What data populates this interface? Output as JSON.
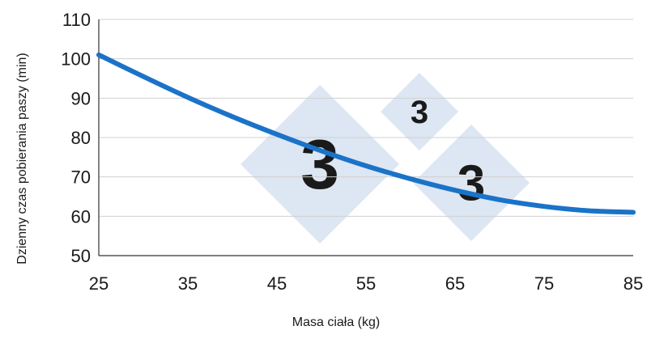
{
  "chart_data": {
    "type": "line",
    "title": "",
    "xlabel": "Masa ciała (kg)",
    "ylabel": "Dzienny czas pobierania paszy (min)",
    "xlim": [
      25,
      85
    ],
    "ylim": [
      50,
      110
    ],
    "x_ticks": [
      "25",
      "35",
      "45",
      "55",
      "65",
      "75",
      "85"
    ],
    "y_ticks": [
      "50",
      "60",
      "70",
      "80",
      "90",
      "100",
      "110"
    ],
    "grid": "horizontal",
    "series": [
      {
        "color": "#1a73c8",
        "x": [
          25,
          30,
          35,
          40,
          45,
          50,
          55,
          60,
          65,
          70,
          75,
          80,
          85
        ],
        "y": [
          101,
          95.5,
          90.2,
          85.3,
          80.8,
          76.6,
          72.8,
          69.5,
          66.6,
          64.2,
          62.5,
          61.4,
          61
        ]
      }
    ]
  },
  "watermark": {
    "color": "#dde6f3"
  }
}
